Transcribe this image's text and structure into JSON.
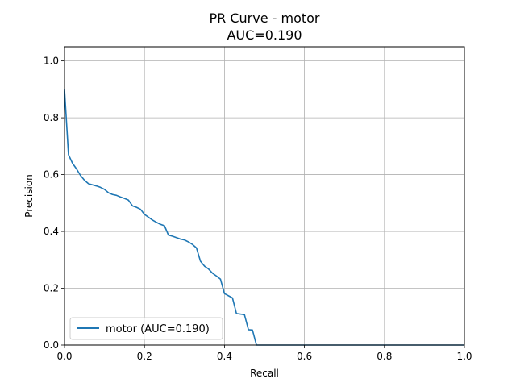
{
  "chart_data": {
    "type": "line",
    "title": "PR Curve - motor",
    "subtitle": "AUC=0.190",
    "xlabel": "Recall",
    "ylabel": "Precision",
    "xlim": [
      0.0,
      1.0
    ],
    "ylim": [
      0.0,
      1.05
    ],
    "xticks": [
      "0.0",
      "0.2",
      "0.4",
      "0.6",
      "0.8",
      "1.0"
    ],
    "yticks": [
      "0.0",
      "0.2",
      "0.4",
      "0.6",
      "0.8",
      "1.0"
    ],
    "grid": true,
    "legend_position": "lower-left",
    "colors": {
      "series": "#1f77b4",
      "grid": "#b0b0b0",
      "axes": "#000000"
    },
    "series": [
      {
        "name": "motor (AUC=0.190)",
        "x": [
          0.0,
          0.01,
          0.02,
          0.03,
          0.04,
          0.05,
          0.06,
          0.08,
          0.09,
          0.1,
          0.11,
          0.12,
          0.13,
          0.14,
          0.15,
          0.16,
          0.17,
          0.18,
          0.19,
          0.2,
          0.22,
          0.23,
          0.24,
          0.25,
          0.26,
          0.27,
          0.28,
          0.29,
          0.3,
          0.31,
          0.32,
          0.33,
          0.34,
          0.35,
          0.36,
          0.37,
          0.38,
          0.39,
          0.4,
          0.42,
          0.43,
          0.45,
          0.46,
          0.47,
          0.48,
          0.5,
          1.0
        ],
        "y": [
          0.9,
          0.67,
          0.64,
          0.62,
          0.597,
          0.58,
          0.568,
          0.56,
          0.555,
          0.548,
          0.536,
          0.53,
          0.527,
          0.521,
          0.516,
          0.51,
          0.49,
          0.485,
          0.478,
          0.46,
          0.44,
          0.432,
          0.425,
          0.42,
          0.387,
          0.383,
          0.378,
          0.373,
          0.37,
          0.363,
          0.354,
          0.342,
          0.295,
          0.278,
          0.268,
          0.253,
          0.243,
          0.232,
          0.181,
          0.166,
          0.111,
          0.107,
          0.054,
          0.053,
          0.0,
          0.0,
          0.0
        ]
      }
    ]
  }
}
